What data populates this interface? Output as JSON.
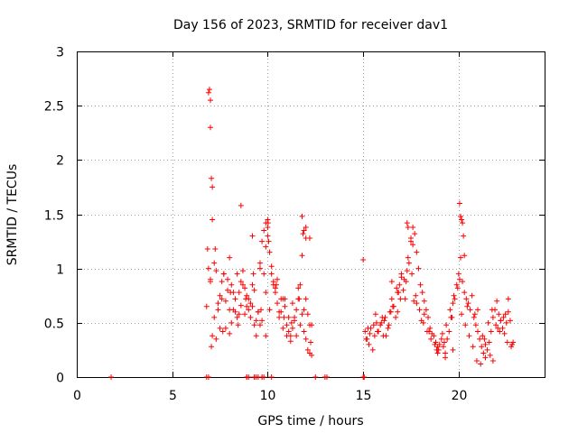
{
  "chart_data": {
    "type": "scatter",
    "title": "Day 156 of 2023, SRMTID for receiver dav1",
    "xlabel": "GPS time / hours",
    "ylabel": "SRMTID / TECUs",
    "xlim": [
      0,
      24.5
    ],
    "ylim": [
      0,
      3
    ],
    "xticks": [
      0,
      5,
      10,
      15,
      20
    ],
    "xtick_labels": [
      "0",
      "5",
      "10",
      "15",
      "20"
    ],
    "yticks": [
      0,
      0.5,
      1,
      1.5,
      2,
      2.5,
      3
    ],
    "ytick_labels": [
      "0",
      "0.5",
      "1",
      "1.5",
      "2",
      "2.5",
      "3"
    ],
    "grid": true,
    "marker": "+",
    "color": "#ff0000",
    "series": [
      {
        "name": "dav1",
        "x": [
          1.8,
          6.8,
          6.9,
          6.95,
          7.0,
          7.0,
          7.05,
          7.1,
          7.1,
          7.2,
          7.3,
          7.4,
          7.5,
          7.6,
          7.7,
          7.8,
          7.9,
          8.0,
          8.1,
          8.2,
          8.3,
          8.4,
          8.5,
          8.6,
          8.7,
          8.8,
          8.9,
          9.0,
          9.1,
          9.2,
          9.3,
          9.4,
          9.5,
          9.6,
          9.7,
          9.8,
          9.9,
          10.0,
          10.1,
          10.2,
          10.3,
          10.4,
          10.5,
          10.6,
          10.7,
          10.8,
          10.9,
          11.0,
          11.1,
          11.2,
          11.3,
          11.4,
          11.5,
          11.6,
          11.7,
          11.8,
          11.9,
          12.0,
          12.1,
          12.2,
          12.3,
          6.85,
          6.9,
          7.0,
          7.2,
          7.4,
          7.6,
          7.8,
          8.0,
          8.2,
          8.4,
          8.6,
          8.8,
          9.0,
          9.2,
          9.4,
          9.6,
          9.8,
          10.0,
          10.2,
          10.4,
          10.6,
          10.8,
          11.0,
          11.2,
          11.4,
          11.6,
          11.8,
          12.0,
          12.2,
          7.1,
          7.5,
          7.9,
          8.3,
          8.7,
          9.1,
          9.5,
          9.9,
          10.3,
          10.7,
          11.1,
          11.5,
          11.9,
          7.0,
          7.3,
          7.7,
          8.1,
          8.5,
          8.9,
          9.3,
          9.7,
          10.1,
          10.5,
          10.9,
          11.3,
          11.7,
          12.1,
          8.0,
          8.6,
          9.2,
          9.6,
          9.9,
          10.0,
          10.05,
          11.8,
          11.9,
          12.0,
          7.25,
          7.65,
          8.05,
          8.45,
          8.85,
          9.25,
          9.65,
          10.45,
          10.85,
          11.25,
          11.65,
          12.25,
          7.05,
          9.9,
          10.02,
          11.85,
          15.0,
          15.1,
          15.2,
          15.3,
          15.4,
          15.5,
          15.6,
          15.7,
          15.8,
          15.9,
          16.0,
          16.1,
          16.2,
          16.3,
          16.4,
          16.5,
          16.6,
          16.7,
          16.8,
          16.9,
          17.0,
          17.1,
          17.2,
          17.3,
          17.4,
          17.5,
          17.6,
          17.7,
          17.8,
          17.9,
          18.0,
          18.1,
          18.2,
          18.3,
          18.4,
          18.5,
          18.6,
          18.7,
          18.8,
          18.9,
          19.0,
          19.1,
          19.2,
          19.3,
          19.4,
          19.5,
          19.6,
          19.7,
          19.8,
          19.9,
          20.0,
          20.1,
          20.2,
          20.3,
          20.4,
          20.5,
          20.6,
          20.7,
          20.8,
          20.9,
          21.0,
          21.1,
          21.2,
          21.3,
          21.4,
          21.5,
          21.6,
          21.7,
          21.8,
          21.9,
          22.0,
          22.1,
          22.2,
          22.3,
          22.4,
          22.5,
          22.6,
          22.7,
          22.8,
          15.15,
          15.35,
          15.55,
          15.75,
          15.95,
          16.15,
          16.35,
          16.55,
          16.75,
          16.95,
          17.15,
          17.35,
          17.55,
          17.75,
          17.95,
          18.15,
          18.35,
          18.55,
          18.75,
          18.95,
          19.15,
          19.35,
          19.55,
          19.75,
          19.95,
          20.15,
          20.35,
          20.55,
          20.75,
          20.95,
          21.15,
          21.35,
          21.55,
          21.75,
          21.95,
          22.15,
          22.35,
          22.55,
          22.75,
          15.25,
          15.65,
          16.05,
          16.45,
          16.85,
          17.25,
          17.65,
          18.05,
          18.45,
          18.85,
          19.25,
          19.65,
          20.05,
          20.45,
          20.85,
          21.25,
          21.65,
          22.05,
          22.45,
          22.85,
          17.3,
          17.35,
          17.5,
          17.6,
          20.05,
          20.1,
          20.15,
          20.2,
          20.25,
          20.3,
          16.5,
          16.8,
          17.0,
          17.8,
          18.2,
          18.9,
          19.3,
          19.7,
          21.0,
          21.4,
          21.8,
          22.2,
          22.6,
          12.0,
          12.2,
          12.3,
          9.3,
          9.7,
          8.9,
          13.0,
          15.02,
          15.05
        ],
        "y": [
          0,
          0.65,
          2.62,
          2.65,
          2.55,
          2.3,
          1.83,
          1.75,
          1.45,
          1.05,
          0.98,
          0.62,
          0.75,
          0.88,
          0.95,
          0.7,
          0.9,
          1.1,
          0.85,
          0.62,
          0.6,
          0.95,
          0.78,
          0.88,
          0.98,
          0.82,
          0.75,
          0.62,
          0.55,
          0.65,
          0.48,
          0.52,
          0.6,
          1.05,
          1.25,
          1.35,
          1.42,
          1.45,
          1.15,
          0.95,
          0.85,
          0.78,
          0.68,
          0.55,
          0.6,
          0.72,
          0.65,
          0.48,
          0.42,
          0.38,
          0.45,
          0.52,
          0.62,
          0.72,
          0.85,
          0.58,
          0.42,
          0.35,
          0.25,
          0.22,
          0.2,
          1.18,
          1.0,
          0.88,
          0.55,
          0.68,
          0.72,
          0.45,
          0.62,
          0.78,
          0.55,
          0.66,
          0.58,
          0.72,
          0.85,
          0.38,
          0.48,
          0.95,
          1.3,
          1.02,
          0.82,
          0.6,
          0.45,
          0.38,
          0.33,
          0.55,
          0.82,
          1.12,
          0.72,
          0.48,
          0.38,
          0.45,
          0.8,
          0.72,
          0.85,
          0.68,
          0.6,
          0.78,
          0.88,
          0.72,
          0.55,
          0.38,
          0.62,
          0.9,
          0.35,
          0.95,
          0.5,
          0.58,
          0.65,
          0.8,
          0.52,
          0.62,
          0.9,
          0.72,
          0.68,
          0.48,
          0.58,
          0.4,
          1.58,
          1.3,
          1.0,
          1.2,
          1.38,
          1.25,
          1.48,
          1.35,
          1.28,
          1.18,
          0.42,
          0.78,
          0.48,
          0.72,
          0.95,
          0.62,
          0.85,
          0.55,
          0.5,
          0.72,
          0.32,
          0.28,
          0.38,
          1.42,
          1.32,
          1.08,
          0.42,
          0.35,
          0.3,
          0.45,
          0.25,
          0.38,
          0.5,
          0.42,
          0.48,
          0.55,
          0.52,
          0.38,
          0.45,
          0.6,
          0.72,
          0.65,
          0.55,
          0.6,
          0.85,
          0.95,
          0.8,
          0.72,
          0.98,
          1.05,
          1.25,
          1.38,
          1.32,
          1.15,
          1.0,
          0.85,
          0.78,
          0.7,
          0.62,
          0.55,
          0.45,
          0.4,
          0.38,
          0.32,
          0.28,
          0.3,
          0.35,
          0.28,
          0.22,
          0.35,
          0.42,
          0.55,
          0.68,
          0.72,
          0.85,
          0.95,
          1.1,
          0.88,
          0.78,
          0.72,
          0.68,
          0.62,
          0.75,
          0.55,
          0.48,
          0.42,
          0.35,
          0.28,
          0.22,
          0.18,
          0.25,
          0.32,
          0.42,
          0.55,
          0.62,
          0.7,
          0.58,
          0.52,
          0.45,
          0.4,
          0.5,
          0.6,
          0.52,
          0.3,
          0.35,
          0.4,
          0.48,
          0.42,
          0.5,
          0.55,
          0.48,
          0.65,
          0.82,
          0.72,
          0.9,
          1.1,
          0.95,
          0.75,
          0.62,
          0.5,
          0.42,
          0.35,
          0.3,
          0.25,
          0.4,
          0.48,
          0.62,
          0.75,
          0.82,
          0.58,
          0.48,
          0.38,
          0.28,
          0.15,
          0.12,
          0.35,
          0.5,
          0.62,
          0.48,
          0.42,
          0.55,
          0.32,
          0.28,
          0.45,
          0.58,
          0.38,
          0.6,
          0.78,
          0.88,
          0.7,
          0.52,
          0.42,
          0.25,
          0.32,
          0.55,
          0.9,
          0.65,
          0.58,
          0.38,
          0.2,
          0.45,
          0.58,
          0.32,
          1.42,
          1.38,
          1.28,
          1.22,
          1.6,
          1.48,
          1.45,
          1.42,
          1.3,
          1.12,
          0.88,
          0.78,
          0.92,
          0.68,
          0.58,
          0.22,
          0.18,
          0.25,
          0.62,
          0.3,
          0.15,
          0.52,
          0.72,
          1.38,
          1.28,
          0.48,
          0,
          0,
          0,
          0,
          0,
          0
        ],
        "y_note": "SRMTID values in TECUs"
      }
    ],
    "zero_marks_x": [
      6.8,
      6.9,
      8.9,
      9.0,
      9.3,
      9.4,
      9.5,
      9.7,
      9.8,
      10.2,
      12.5,
      13.1,
      15.0,
      15.05
    ]
  }
}
